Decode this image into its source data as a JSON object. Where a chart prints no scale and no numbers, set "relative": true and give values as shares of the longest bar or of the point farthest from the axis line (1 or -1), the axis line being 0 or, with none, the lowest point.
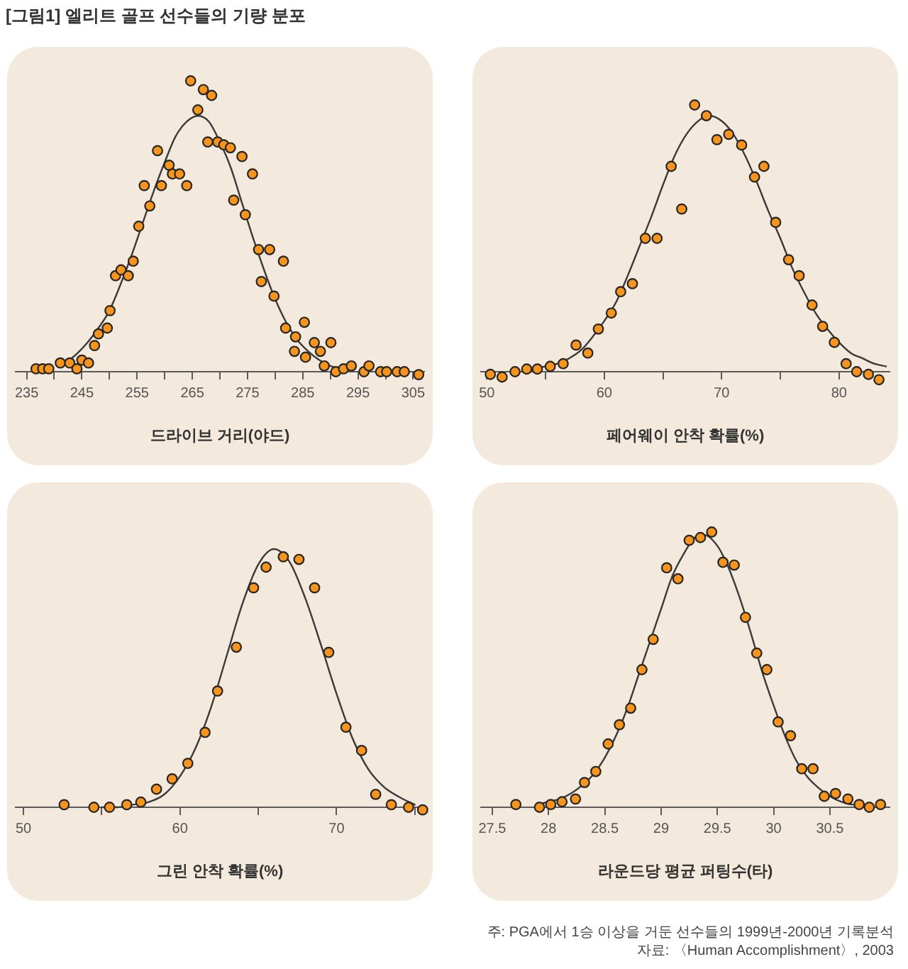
{
  "chart_data": [
    {
      "type": "scatter",
      "title": "[그림1] 엘리트 골프 선수들의 기량 분포",
      "xlabel": "드라이브 거리(야드)",
      "relative": true,
      "xlim": [
        233,
        307
      ],
      "xticks": [
        235,
        {
          "value": 240,
          "label": null
        },
        245,
        {
          "value": 250,
          "label": null
        },
        255,
        {
          "value": 260,
          "label": null
        },
        265,
        {
          "value": 270,
          "label": null
        },
        275,
        {
          "value": 280,
          "label": null
        },
        285,
        {
          "value": 290,
          "label": null
        },
        295,
        {
          "value": 300,
          "label": null
        },
        305
      ],
      "series": [
        {
          "color": "#f7941d",
          "marker": "circle",
          "x": [
            236.7,
            237.9,
            239.0,
            241.1,
            242.8,
            244.1,
            245.0,
            246.2,
            247.3,
            248.0,
            249.6,
            250.1,
            251.1,
            252.1,
            253.4,
            254.3,
            255.3,
            256.3,
            257.3,
            258.7,
            259.4,
            260.8,
            261.4,
            262.7,
            264.0,
            264.7,
            266.0,
            267.0,
            267.8,
            268.5,
            269.6,
            270.7,
            271.9,
            272.5,
            274.0,
            274.6,
            275.9,
            277.0,
            277.5,
            279.0,
            279.8,
            281.5,
            281.9,
            283.5,
            283.7,
            285.3,
            285.5,
            287.1,
            288.2,
            288.9,
            290.1,
            291.0,
            292.4,
            293.8,
            296.1,
            297.0,
            299.1,
            300.2,
            302.1,
            303.4,
            306.0
          ],
          "values": [
            0.01,
            0.01,
            0.01,
            0.03,
            0.03,
            0.01,
            0.04,
            0.03,
            0.09,
            0.13,
            0.15,
            0.21,
            0.33,
            0.35,
            0.33,
            0.38,
            0.5,
            0.64,
            0.57,
            0.76,
            0.64,
            0.71,
            0.68,
            0.68,
            0.64,
            1,
            0.9,
            0.97,
            0.79,
            0.95,
            0.79,
            0.78,
            0.77,
            0.59,
            0.74,
            0.54,
            0.68,
            0.42,
            0.31,
            0.42,
            0.26,
            0.38,
            0.15,
            0.07,
            0.12,
            0.17,
            0.05,
            0.1,
            0.07,
            0.02,
            0.1,
            0,
            0.01,
            0.02,
            0,
            0.02,
            0,
            0,
            0,
            0,
            -0.01
          ]
        },
        {
          "type": "line",
          "color": "#3a3a3a",
          "x": [
            241,
            242,
            244,
            246,
            248,
            250,
            252,
            254,
            256,
            258,
            260,
            262,
            264,
            266,
            268,
            270,
            272,
            274,
            276,
            278,
            280,
            282,
            284,
            286,
            288,
            290,
            292,
            294
          ],
          "values": [
            0.02,
            0.03,
            0.06,
            0.1,
            0.15,
            0.21,
            0.3,
            0.4,
            0.51,
            0.62,
            0.72,
            0.81,
            0.86,
            0.88,
            0.86,
            0.79,
            0.7,
            0.58,
            0.46,
            0.35,
            0.25,
            0.17,
            0.11,
            0.07,
            0.04,
            0.02,
            0.01,
            0.01
          ]
        }
      ]
    },
    {
      "type": "scatter",
      "xlabel": "페어웨이 안착 확률(%)",
      "relative": true,
      "xlim": [
        49.5,
        84.3
      ],
      "xticks": [
        50,
        {
          "value": 55,
          "label": null
        },
        60,
        {
          "value": 65,
          "label": null
        },
        70,
        {
          "value": 75,
          "label": null
        },
        80
      ],
      "series": [
        {
          "color": "#f7941d",
          "marker": "circle",
          "x": [
            50.3,
            51.3,
            52.4,
            53.4,
            54.3,
            55.4,
            56.5,
            57.6,
            58.6,
            59.5,
            60.6,
            61.4,
            62.4,
            63.5,
            64.5,
            65.7,
            66.6,
            67.7,
            68.7,
            69.6,
            70.6,
            71.7,
            72.8,
            73.6,
            74.6,
            75.7,
            76.6,
            77.7,
            78.6,
            79.6,
            80.6,
            81.5,
            82.5,
            83.4
          ],
          "values": [
            -0.01,
            -0.02,
            0,
            0.01,
            0.01,
            0.02,
            0.03,
            0.1,
            0.07,
            0.16,
            0.22,
            0.3,
            0.33,
            0.5,
            0.5,
            0.77,
            0.61,
            1,
            0.96,
            0.87,
            0.89,
            0.85,
            0.73,
            0.77,
            0.56,
            0.42,
            0.36,
            0.25,
            0.17,
            0.11,
            0.03,
            0,
            -0.01,
            -0.03
          ]
        },
        {
          "type": "line",
          "color": "#3a3a3a",
          "x": [
            54,
            55,
            56,
            57,
            58,
            59,
            60,
            61,
            62,
            63,
            64,
            65,
            66,
            67,
            68,
            68.9,
            70,
            71,
            72,
            73,
            74,
            75,
            76,
            77,
            78,
            79,
            80,
            81,
            82,
            83,
            84
          ],
          "values": [
            0.01,
            0.02,
            0.03,
            0.05,
            0.08,
            0.13,
            0.19,
            0.26,
            0.36,
            0.47,
            0.58,
            0.7,
            0.81,
            0.89,
            0.94,
            0.96,
            0.94,
            0.89,
            0.81,
            0.71,
            0.6,
            0.5,
            0.39,
            0.3,
            0.22,
            0.16,
            0.11,
            0.07,
            0.05,
            0.03,
            0.02
          ]
        }
      ]
    },
    {
      "type": "scatter",
      "xlabel": "그린 안착 확률(%)",
      "relative": true,
      "xlim": [
        49.5,
        75.6
      ],
      "xticks": [
        50,
        {
          "value": 55,
          "label": null
        },
        60,
        {
          "value": 65,
          "label": null
        },
        70,
        {
          "value": 75,
          "label": null
        }
      ],
      "series": [
        {
          "color": "#f7941d",
          "marker": "circle",
          "x": [
            52.6,
            54.5,
            55.5,
            56.6,
            57.5,
            58.5,
            59.5,
            60.5,
            61.6,
            62.4,
            63.6,
            64.7,
            65.5,
            66.6,
            67.6,
            68.6,
            69.5,
            70.6,
            71.6,
            72.5,
            73.5,
            74.6,
            75.5
          ],
          "values": [
            0.01,
            0,
            0,
            0.01,
            0.02,
            0.07,
            0.11,
            0.17,
            0.29,
            0.45,
            0.62,
            0.85,
            0.93,
            0.97,
            0.96,
            0.85,
            0.6,
            0.31,
            0.22,
            0.05,
            0.01,
            0,
            -0.01
          ]
        },
        {
          "type": "line",
          "color": "#3a3a3a",
          "x": [
            55,
            56,
            57,
            58,
            59,
            60,
            61,
            62,
            63,
            64,
            65,
            66,
            67,
            68,
            69,
            70,
            71,
            72,
            73,
            74,
            75
          ],
          "values": [
            0,
            0,
            0.01,
            0.02,
            0.05,
            0.12,
            0.23,
            0.39,
            0.59,
            0.79,
            0.94,
            1,
            0.95,
            0.81,
            0.63,
            0.44,
            0.27,
            0.15,
            0.08,
            0.04,
            0.01
          ]
        }
      ]
    },
    {
      "type": "scatter",
      "xlabel": "라운드당 평균 퍼팅수(타)",
      "relative": true,
      "xlim": [
        27.4,
        31.03
      ],
      "xticks": [
        27.5,
        28,
        28.5,
        29,
        29.5,
        30,
        30.5
      ],
      "annotations": [
        "주: PGA에서 1승 이상을 거둔 선수들의 1999년-2000년 기록분석",
        "자료: 〈Human Accomplishment〉, 2003"
      ],
      "series": [
        {
          "color": "#f7941d",
          "marker": "circle",
          "x": [
            27.71,
            27.92,
            28.02,
            28.12,
            28.24,
            28.32,
            28.42,
            28.53,
            28.63,
            28.73,
            28.83,
            28.93,
            29.05,
            29.15,
            29.25,
            29.35,
            29.45,
            29.55,
            29.65,
            29.75,
            29.85,
            29.94,
            30.04,
            30.15,
            30.25,
            30.35,
            30.45,
            30.55,
            30.66,
            30.76,
            30.85,
            30.95
          ],
          "values": [
            0.01,
            0,
            0.01,
            0.02,
            0.03,
            0.09,
            0.13,
            0.23,
            0.3,
            0.36,
            0.5,
            0.61,
            0.87,
            0.83,
            0.97,
            0.98,
            1,
            0.89,
            0.88,
            0.69,
            0.56,
            0.5,
            0.31,
            0.26,
            0.14,
            0.14,
            0.04,
            0.05,
            0.03,
            0.01,
            0,
            0.01
          ]
        },
        {
          "type": "line",
          "color": "#3a3a3a",
          "x": [
            27.9,
            28.0,
            28.1,
            28.2,
            28.3,
            28.4,
            28.5,
            28.6,
            28.7,
            28.8,
            28.9,
            29.0,
            29.1,
            29.2,
            29.3,
            29.38,
            29.5,
            29.6,
            29.7,
            29.8,
            29.9,
            30.0,
            30.1,
            30.2,
            30.3,
            30.4,
            30.5,
            30.6,
            30.7,
            30.8
          ],
          "values": [
            0.01,
            0.02,
            0.03,
            0.05,
            0.08,
            0.12,
            0.18,
            0.26,
            0.36,
            0.48,
            0.6,
            0.72,
            0.84,
            0.92,
            0.98,
            0.99,
            0.95,
            0.87,
            0.76,
            0.63,
            0.49,
            0.37,
            0.26,
            0.17,
            0.11,
            0.07,
            0.04,
            0.02,
            0.01,
            0.01
          ]
        }
      ]
    }
  ]
}
